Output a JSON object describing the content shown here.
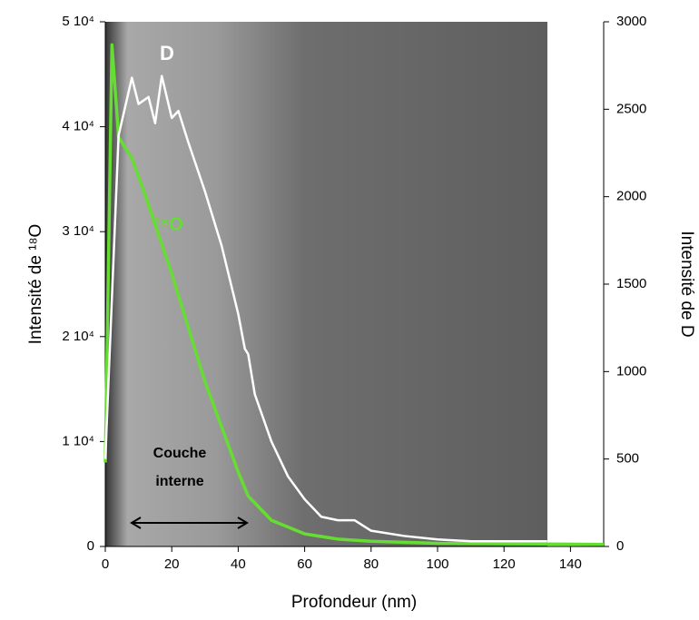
{
  "chart_data": {
    "type": "line",
    "xlabel": "Profondeur (nm)",
    "ylabel": "Intensité de ¹⁸O",
    "y2label": "Intensité de D",
    "annotations": [
      "Couche",
      "interne"
    ],
    "xlim": [
      0,
      150
    ],
    "xticks": [
      0,
      20,
      40,
      60,
      80,
      100,
      120,
      140
    ],
    "ylim": [
      0,
      50000
    ],
    "yticks": [
      {
        "value": 0,
        "label": "0"
      },
      {
        "value": 10000,
        "label": "1 10⁴"
      },
      {
        "value": 20000,
        "label": "2 10⁴"
      },
      {
        "value": 30000,
        "label": "3 10⁴"
      },
      {
        "value": 40000,
        "label": "4 10⁴"
      },
      {
        "value": 50000,
        "label": "5 10⁴"
      }
    ],
    "y2lim": [
      0,
      3000
    ],
    "y2ticks": [
      0,
      500,
      1000,
      1500,
      2000,
      2500,
      3000
    ],
    "series": [
      {
        "name": "¹⁸O",
        "color": "#66dd33",
        "x": [
          0,
          2,
          4,
          8,
          12,
          20,
          30,
          40,
          43,
          50,
          60,
          70,
          80,
          100,
          150
        ],
        "values": [
          8000,
          47800,
          39000,
          37000,
          33500,
          26000,
          15700,
          7100,
          4800,
          2500,
          1200,
          700,
          500,
          300,
          200
        ]
      },
      {
        "name": "D",
        "color": "#ffffff",
        "axis": "y2",
        "x": [
          0,
          4,
          8,
          10,
          13,
          15,
          17,
          20,
          22,
          25,
          30,
          35,
          40,
          42,
          43,
          45,
          50,
          55,
          60,
          65,
          70,
          75,
          80,
          90,
          100,
          110,
          120,
          133
        ],
        "values": [
          500,
          2350,
          2680,
          2530,
          2570,
          2420,
          2690,
          2450,
          2490,
          2310,
          2030,
          1720,
          1330,
          1130,
          1100,
          870,
          600,
          400,
          270,
          170,
          150,
          150,
          90,
          60,
          40,
          30,
          30,
          30
        ]
      }
    ]
  }
}
